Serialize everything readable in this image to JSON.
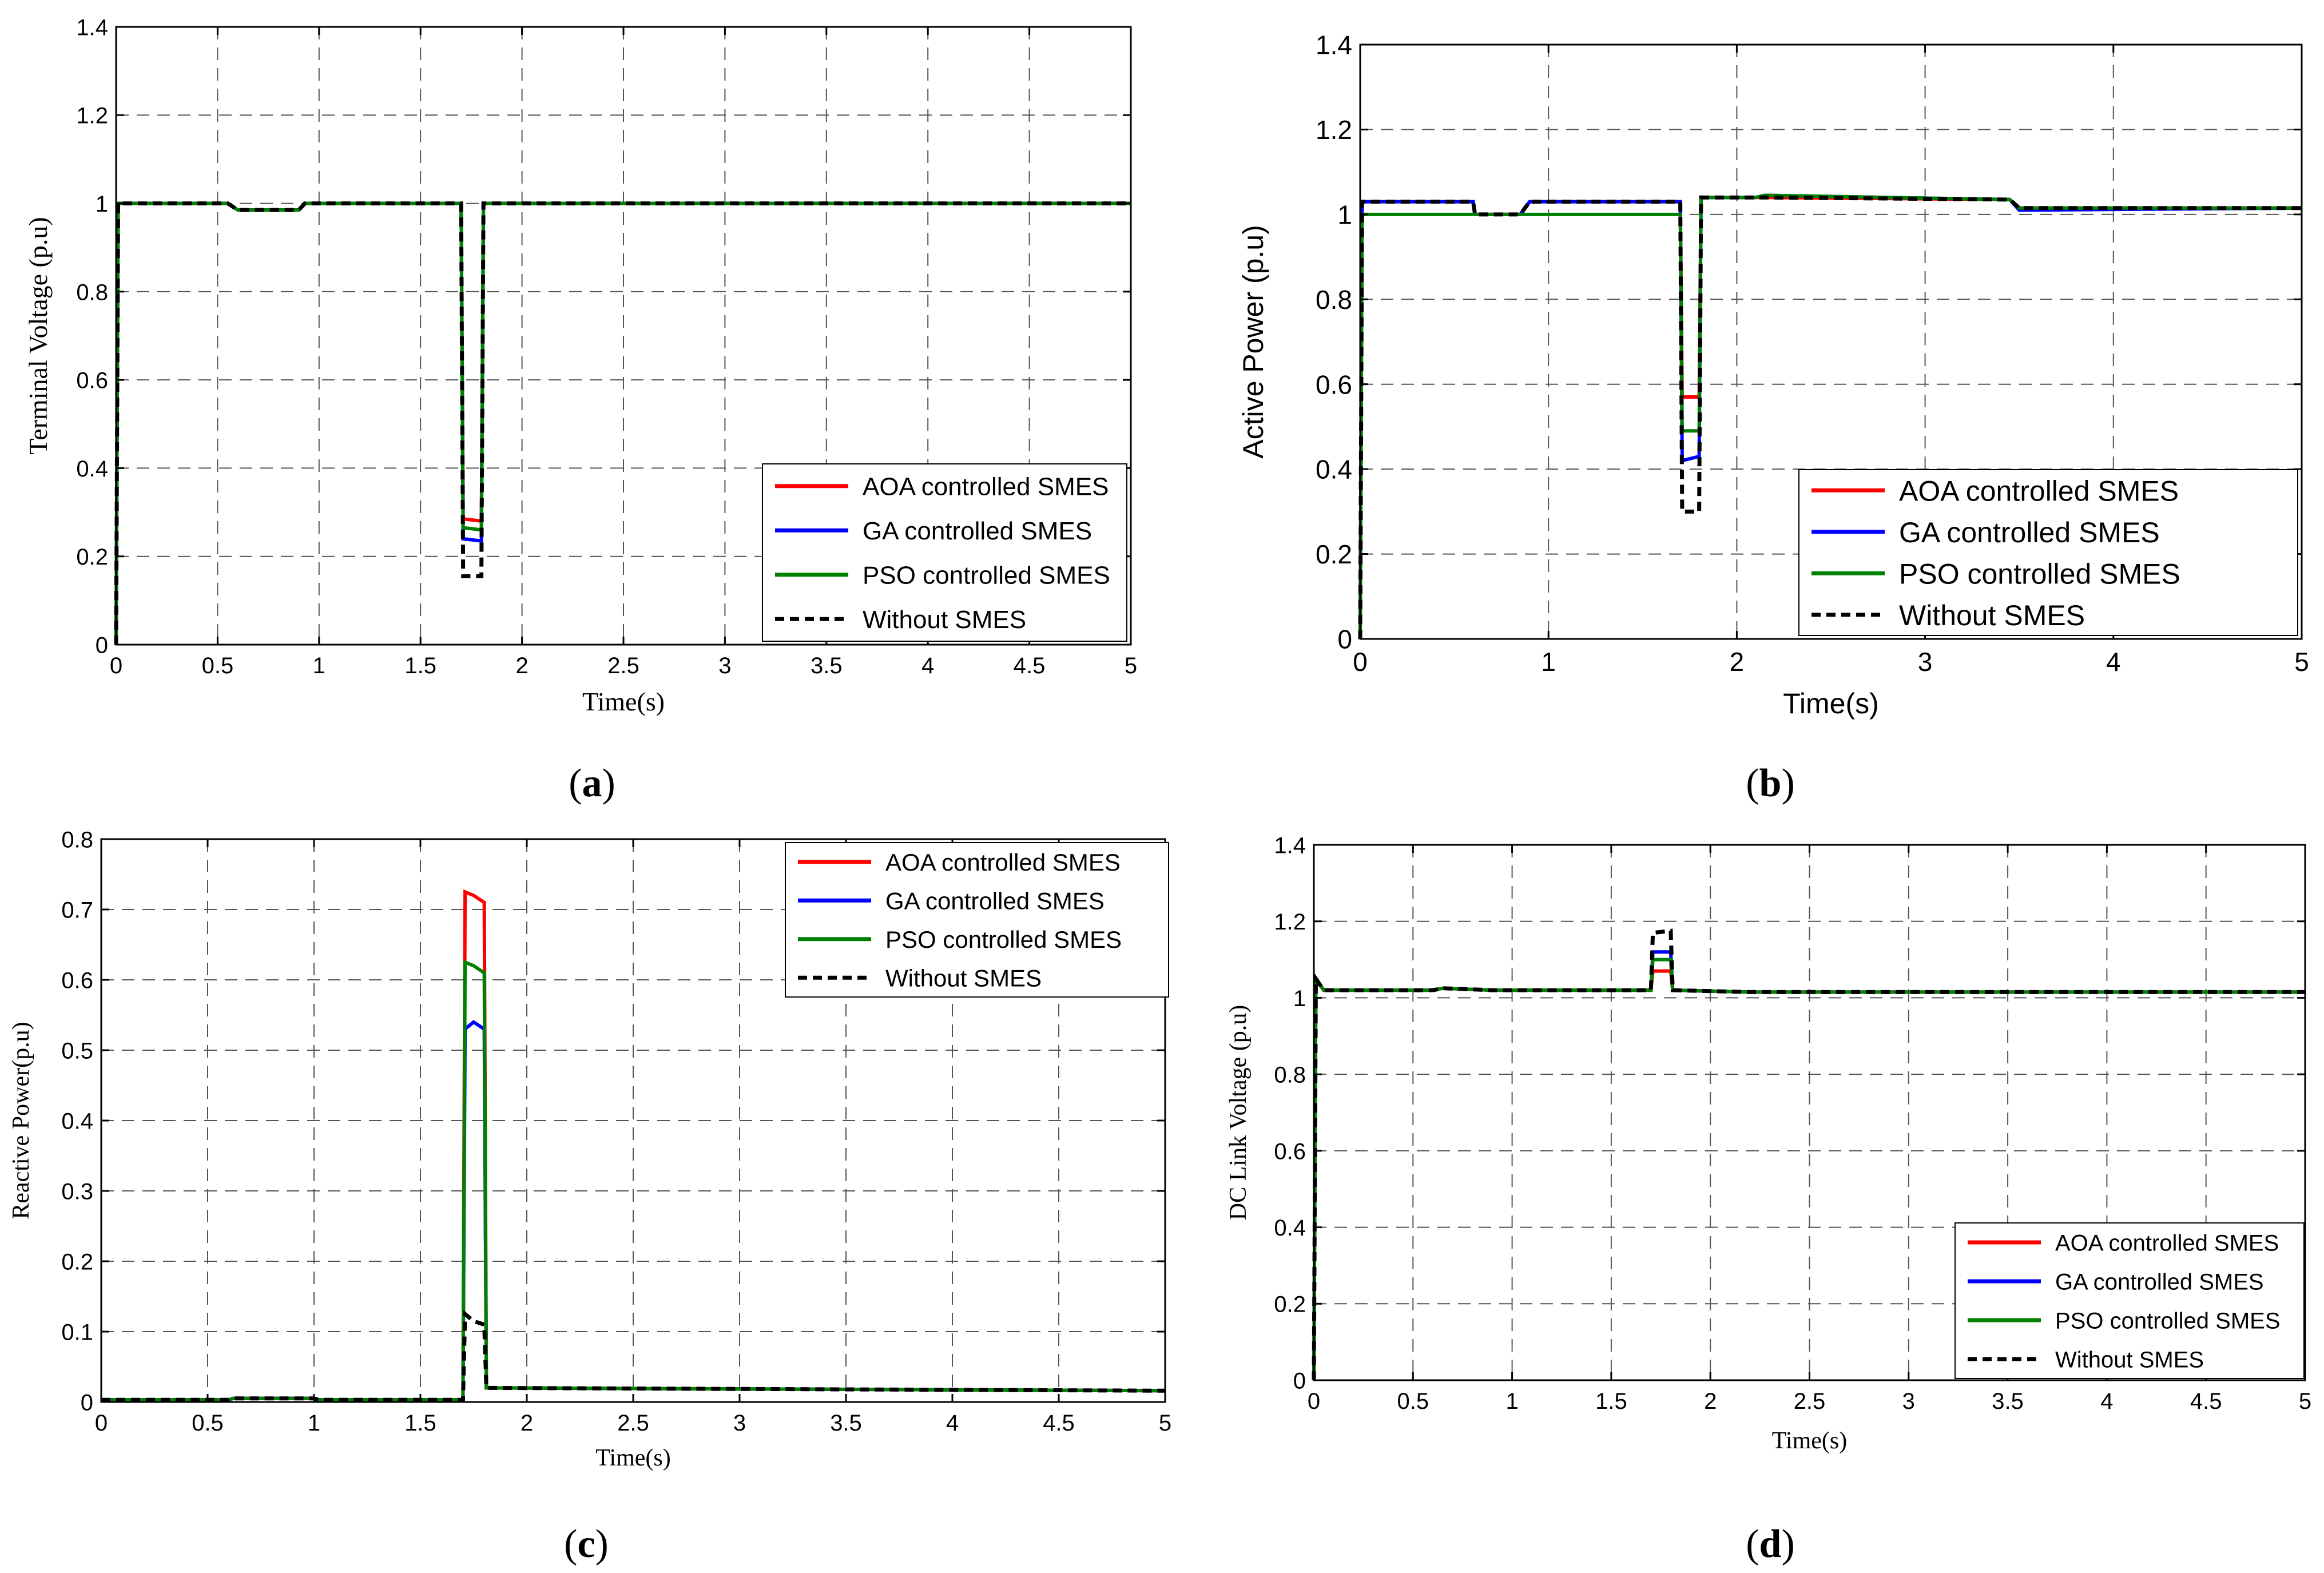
{
  "colors": {
    "aoa": "#ff0000",
    "ga": "#0000ff",
    "pso": "#008000",
    "without": "#000000",
    "grid": "#555555",
    "axis": "#000000"
  },
  "chart_data": [
    {
      "id": "a",
      "type": "line",
      "caption": "(a)",
      "caption_letter": "a",
      "xlabel": "Time(s)",
      "ylabel": "Terminal Voltage (p.u)",
      "xlim": [
        0,
        5
      ],
      "ylim": [
        0,
        1.4
      ],
      "xticks": [
        0,
        0.5,
        1,
        1.5,
        2,
        2.5,
        3,
        3.5,
        4,
        4.5,
        5
      ],
      "xtick_labels": [
        "0",
        "0.5",
        "1",
        "1.5",
        "2",
        "2.5",
        "3",
        "3.5",
        "4",
        "4.5",
        "5"
      ],
      "yticks": [
        0,
        0.2,
        0.4,
        0.6,
        0.8,
        1,
        1.2,
        1.4
      ],
      "ytick_labels": [
        "0",
        "0.2",
        "0.4",
        "0.6",
        "0.8",
        "1",
        "1.2",
        "1.4"
      ],
      "legend_position": "lower-right",
      "series": [
        {
          "name": "AOA controlled SMES",
          "color_key": "aoa",
          "dashed": false,
          "x": [
            0,
            0.01,
            0.55,
            0.6,
            0.9,
            0.93,
            1.7,
            1.71,
            1.8,
            1.81,
            5
          ],
          "y": [
            0,
            1.0,
            1.0,
            0.985,
            0.985,
            1.0,
            1.0,
            0.285,
            0.28,
            1.0,
            1.0
          ]
        },
        {
          "name": "GA controlled SMES",
          "color_key": "ga",
          "dashed": false,
          "x": [
            0,
            0.01,
            0.55,
            0.6,
            0.9,
            0.93,
            1.7,
            1.71,
            1.8,
            1.81,
            5
          ],
          "y": [
            0,
            1.0,
            1.0,
            0.985,
            0.985,
            1.0,
            1.0,
            0.24,
            0.235,
            1.0,
            1.0
          ]
        },
        {
          "name": "PSO controlled SMES",
          "color_key": "pso",
          "dashed": false,
          "x": [
            0,
            0.01,
            0.55,
            0.6,
            0.9,
            0.93,
            1.7,
            1.71,
            1.8,
            1.81,
            5
          ],
          "y": [
            0,
            1.0,
            1.0,
            0.985,
            0.985,
            1.0,
            1.0,
            0.265,
            0.26,
            1.0,
            1.0
          ]
        },
        {
          "name": "Without SMES",
          "color_key": "without",
          "dashed": true,
          "x": [
            0,
            0.01,
            0.55,
            0.6,
            0.9,
            0.93,
            1.7,
            1.71,
            1.8,
            1.81,
            5
          ],
          "y": [
            0,
            1.0,
            1.0,
            0.985,
            0.985,
            1.0,
            1.0,
            0.155,
            0.155,
            1.0,
            1.0
          ]
        }
      ]
    },
    {
      "id": "b",
      "type": "line",
      "caption": "(b)",
      "caption_letter": "b",
      "xlabel": "Time(s)",
      "ylabel": "Active Power (p.u)",
      "xlim": [
        0,
        5
      ],
      "ylim": [
        0,
        1.4
      ],
      "xticks": [
        0,
        1,
        2,
        3,
        4,
        5
      ],
      "xtick_labels": [
        "0",
        "1",
        "2",
        "3",
        "4",
        "5"
      ],
      "yticks": [
        0,
        0.2,
        0.4,
        0.6,
        0.8,
        1,
        1.2,
        1.4
      ],
      "ytick_labels": [
        "0",
        "0.2",
        "0.4",
        "0.6",
        "0.8",
        "1",
        "1.2",
        "1.4"
      ],
      "legend_position": "lower-right",
      "series": [
        {
          "name": "AOA controlled SMES",
          "color_key": "aoa",
          "dashed": false,
          "x": [
            0,
            0.01,
            0.6,
            0.61,
            0.85,
            0.9,
            1.7,
            1.71,
            1.8,
            1.81,
            2.1,
            2.15,
            3.45,
            3.5,
            5
          ],
          "y": [
            0,
            1.03,
            1.03,
            1.0,
            1.0,
            1.03,
            1.03,
            0.57,
            0.57,
            1.04,
            1.04,
            1.04,
            1.035,
            1.015,
            1.015
          ]
        },
        {
          "name": "GA controlled SMES",
          "color_key": "ga",
          "dashed": false,
          "x": [
            0,
            0.01,
            0.6,
            0.61,
            0.85,
            0.9,
            1.7,
            1.71,
            1.8,
            1.81,
            2.1,
            2.15,
            3.45,
            3.5,
            5
          ],
          "y": [
            0,
            1.03,
            1.03,
            1.0,
            1.0,
            1.03,
            1.03,
            0.42,
            0.43,
            1.04,
            1.04,
            1.045,
            1.035,
            1.01,
            1.015
          ]
        },
        {
          "name": "PSO controlled SMES",
          "color_key": "pso",
          "dashed": false,
          "x": [
            0,
            0.01,
            1.7,
            1.71,
            1.8,
            1.81,
            2.1,
            2.15,
            3.45,
            3.5,
            5
          ],
          "y": [
            0,
            1.0,
            1.0,
            0.49,
            0.49,
            1.04,
            1.04,
            1.045,
            1.035,
            1.015,
            1.015
          ]
        },
        {
          "name": "Without SMES",
          "color_key": "without",
          "dashed": true,
          "x": [
            0,
            0.01,
            0.6,
            0.61,
            0.85,
            0.9,
            1.7,
            1.71,
            1.8,
            1.81,
            2.1,
            2.15,
            3.45,
            3.5,
            5
          ],
          "y": [
            0,
            1.03,
            1.03,
            1.0,
            1.0,
            1.03,
            1.03,
            0.3,
            0.3,
            1.04,
            1.04,
            1.04,
            1.035,
            1.015,
            1.015
          ]
        }
      ]
    },
    {
      "id": "c",
      "type": "line",
      "caption": "(c)",
      "caption_letter": "c",
      "xlabel": "Time(s)",
      "ylabel": "Reactive Power(p.u)",
      "xlim": [
        0,
        5
      ],
      "ylim": [
        0,
        0.8
      ],
      "xticks": [
        0,
        0.5,
        1,
        1.5,
        2,
        2.5,
        3,
        3.5,
        4,
        4.5,
        5
      ],
      "xtick_labels": [
        "0",
        "0.5",
        "1",
        "1.5",
        "2",
        "2.5",
        "3",
        "3.5",
        "4",
        "4.5",
        "5"
      ],
      "yticks": [
        0,
        0.1,
        0.2,
        0.3,
        0.4,
        0.5,
        0.6,
        0.7,
        0.8
      ],
      "ytick_labels": [
        "0",
        "0.1",
        "0.2",
        "0.3",
        "0.4",
        "0.5",
        "0.6",
        "0.7",
        "0.8"
      ],
      "legend_position": "top-right",
      "series": [
        {
          "name": "AOA controlled SMES",
          "color_key": "aoa",
          "dashed": false,
          "x": [
            0,
            0.6,
            0.62,
            1.0,
            1.02,
            1.7,
            1.71,
            1.75,
            1.8,
            1.81,
            5
          ],
          "y": [
            0.003,
            0.003,
            0.005,
            0.005,
            0.003,
            0.003,
            0.725,
            0.72,
            0.71,
            0.02,
            0.016
          ]
        },
        {
          "name": "GA controlled SMES",
          "color_key": "ga",
          "dashed": false,
          "x": [
            0,
            0.6,
            0.62,
            1.0,
            1.02,
            1.7,
            1.71,
            1.75,
            1.8,
            1.81,
            5
          ],
          "y": [
            0.003,
            0.003,
            0.005,
            0.005,
            0.003,
            0.003,
            0.53,
            0.54,
            0.53,
            0.02,
            0.016
          ]
        },
        {
          "name": "PSO controlled SMES",
          "color_key": "pso",
          "dashed": false,
          "x": [
            0,
            0.6,
            0.62,
            1.0,
            1.02,
            1.7,
            1.71,
            1.75,
            1.8,
            1.81,
            5
          ],
          "y": [
            0.003,
            0.003,
            0.005,
            0.005,
            0.003,
            0.003,
            0.625,
            0.62,
            0.61,
            0.02,
            0.016
          ]
        },
        {
          "name": "Without SMES",
          "color_key": "without",
          "dashed": true,
          "x": [
            0,
            0.6,
            0.62,
            1.0,
            1.02,
            1.7,
            1.71,
            1.75,
            1.8,
            1.81,
            5
          ],
          "y": [
            0.003,
            0.003,
            0.005,
            0.005,
            0.003,
            0.003,
            0.125,
            0.115,
            0.11,
            0.02,
            0.016
          ]
        }
      ]
    },
    {
      "id": "d",
      "type": "line",
      "caption": "(d)",
      "caption_letter": "d",
      "xlabel": "Time(s)",
      "ylabel": "DC Link Voltage (p.u)",
      "xlim": [
        0,
        5
      ],
      "ylim": [
        0,
        1.4
      ],
      "xticks": [
        0,
        0.5,
        1,
        1.5,
        2,
        2.5,
        3,
        3.5,
        4,
        4.5,
        5
      ],
      "xtick_labels": [
        "0",
        "0.5",
        "1",
        "1.5",
        "2",
        "2.5",
        "3",
        "3.5",
        "4",
        "4.5",
        "5"
      ],
      "yticks": [
        0,
        0.2,
        0.4,
        0.6,
        0.8,
        1,
        1.2,
        1.4
      ],
      "ytick_labels": [
        "0",
        "0.2",
        "0.4",
        "0.6",
        "0.8",
        "1",
        "1.2",
        "1.4"
      ],
      "legend_position": "lower-right",
      "series": [
        {
          "name": "AOA controlled SMES",
          "color_key": "aoa",
          "dashed": false,
          "x": [
            0,
            0.01,
            0.05,
            0.6,
            0.65,
            0.9,
            1.7,
            1.71,
            1.8,
            1.81,
            2.2,
            5
          ],
          "y": [
            0,
            1.05,
            1.02,
            1.02,
            1.025,
            1.02,
            1.02,
            1.07,
            1.07,
            1.02,
            1.015,
            1.015
          ]
        },
        {
          "name": "GA controlled SMES",
          "color_key": "ga",
          "dashed": false,
          "x": [
            0,
            0.01,
            0.05,
            0.6,
            0.65,
            0.9,
            1.7,
            1.71,
            1.8,
            1.81,
            2.2,
            5
          ],
          "y": [
            0,
            1.05,
            1.02,
            1.02,
            1.025,
            1.02,
            1.02,
            1.12,
            1.12,
            1.02,
            1.015,
            1.015
          ]
        },
        {
          "name": "PSO controlled SMES",
          "color_key": "pso",
          "dashed": false,
          "x": [
            0,
            0.01,
            0.05,
            0.6,
            0.65,
            0.9,
            1.7,
            1.71,
            1.8,
            1.81,
            2.2,
            5
          ],
          "y": [
            0,
            1.05,
            1.02,
            1.02,
            1.025,
            1.02,
            1.02,
            1.1,
            1.1,
            1.02,
            1.015,
            1.015
          ]
        },
        {
          "name": "Without SMES",
          "color_key": "without",
          "dashed": true,
          "x": [
            0,
            0.01,
            0.05,
            0.6,
            0.65,
            0.9,
            1.7,
            1.71,
            1.8,
            1.81,
            2.2,
            5
          ],
          "y": [
            0,
            1.05,
            1.02,
            1.02,
            1.025,
            1.02,
            1.02,
            1.17,
            1.175,
            1.02,
            1.015,
            1.015
          ]
        }
      ]
    }
  ]
}
